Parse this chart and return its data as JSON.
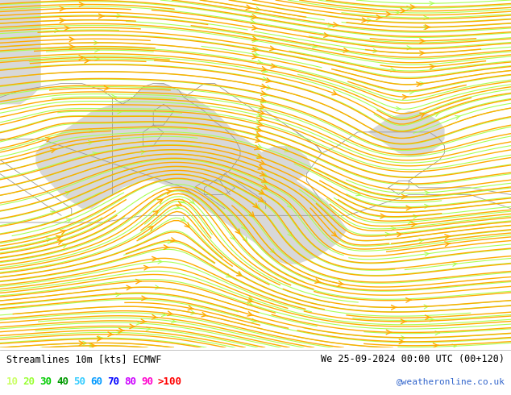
{
  "title_left": "Streamlines 10m [kts] ECMWF",
  "title_right": "We 25-09-2024 00:00 UTC (00+120)",
  "watermark": "@weatheronline.co.uk",
  "legend_labels": [
    "10",
    "20",
    "30",
    "40",
    "50",
    "60",
    "70",
    "80",
    "90",
    ">100"
  ],
  "legend_colors": [
    "#ccff66",
    "#99ff33",
    "#00cc00",
    "#009900",
    "#33ccff",
    "#0099ff",
    "#0000ff",
    "#cc00ff",
    "#ff00cc",
    "#ff0000"
  ],
  "land_color": "#ccffaa",
  "sea_color": "#d8d8d8",
  "streamline_color_fast": "#ffaa00",
  "streamline_color_slow": "#aaff55",
  "border_color": "#999999",
  "bottom_bg": "#ffffff",
  "figsize": [
    6.34,
    4.9
  ],
  "dpi": 100
}
